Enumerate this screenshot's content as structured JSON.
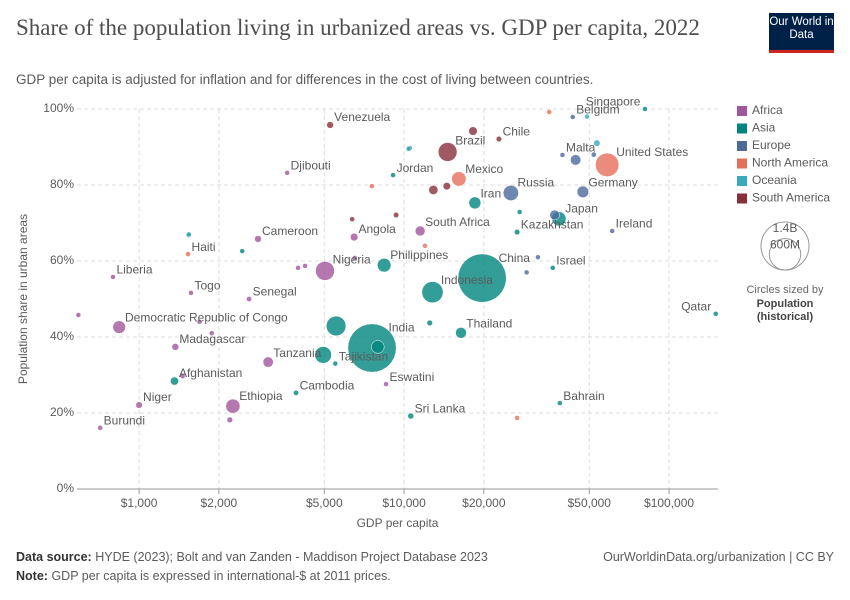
{
  "chart_data": {
    "type": "bubble",
    "title": "Share of the population living in urbanized areas vs. GDP per capita, 2022",
    "subtitle": "GDP per capita is adjusted for inflation and for differences in the cost of living between countries.",
    "logo": "Our World in Data",
    "x_label": "GDP per capita",
    "y_label": "Population share in urban areas",
    "log_x": true,
    "grid": true,
    "legend_position": "right",
    "xlim": [
      583,
      153000
    ],
    "xticks": [
      {
        "value": 1000,
        "label": "$1,000"
      },
      {
        "value": 2000,
        "label": "$2,000"
      },
      {
        "value": 5000,
        "label": "$5,000"
      },
      {
        "value": 10000,
        "label": "$10,000"
      },
      {
        "value": 20000,
        "label": "$20,000"
      },
      {
        "value": 50000,
        "label": "$50,000"
      },
      {
        "value": 100000,
        "label": "$100,000"
      }
    ],
    "ylim": [
      0,
      100
    ],
    "yticks": [
      {
        "value": 0,
        "label": "0%"
      },
      {
        "value": 20,
        "label": "20%"
      },
      {
        "value": 40,
        "label": "40%"
      },
      {
        "value": 60,
        "label": "60%"
      },
      {
        "value": 80,
        "label": "80%"
      },
      {
        "value": 100,
        "label": "100%"
      }
    ],
    "series": [
      {
        "name": "Africa",
        "color": "#a2559c",
        "labels": [
          "Djibouti",
          "Cameroon",
          "Nigeria",
          "Liberia",
          "Togo",
          "Senegal",
          "Democratic Republic of Congo",
          "Madagascar",
          "Tanzania",
          "Ethiopia",
          "Niger",
          "Burundi",
          "South Africa",
          "Angola",
          "Eswatini",
          null,
          null,
          null,
          null,
          null,
          null,
          null,
          null
        ],
        "x": [
          3620,
          2810,
          5030,
          797,
          1570,
          2600,
          841,
          1370,
          3070,
          2260,
          1000,
          713,
          11500,
          6480,
          8550,
          590,
          1690,
          1880,
          4230,
          3980,
          6520,
          2200,
          1460
        ],
        "values": [
          83.2,
          65.8,
          57.4,
          55.8,
          51.6,
          50.0,
          42.6,
          37.4,
          33.4,
          21.8,
          22.1,
          16.1,
          67.9,
          66.3,
          27.6,
          45.8,
          44,
          41,
          58.7,
          58.2,
          60.8,
          18.2,
          29.7
        ],
        "sizes": [
          1100000,
          28000000,
          218000000,
          5300000,
          8800000,
          17000000,
          99000000,
          29000000,
          65000000,
          123000000,
          26000000,
          13000000,
          60000000,
          36000000,
          1200000,
          2000000,
          5000000,
          4000000,
          6000000,
          5000000,
          4000000,
          20000000,
          8000000
        ]
      },
      {
        "name": "Asia",
        "color": "#00847e",
        "labels": [
          "Jordan",
          "Iran",
          "Japan",
          "Kazakhstan",
          "China",
          "Israel",
          "Philippines",
          "Indonesia",
          "Qatar",
          "Thailand",
          "India",
          "Tajikistan",
          "Afghanistan",
          "Cambodia",
          "Sri Lanka",
          "Bahrain",
          "Singapore",
          null,
          null,
          null,
          null,
          null,
          null,
          null,
          null
        ],
        "x": [
          9090,
          18500,
          38400,
          26700,
          19700,
          36400,
          8410,
          12800,
          150000,
          16400,
          7570,
          5500,
          1360,
          3910,
          10600,
          38700,
          81100,
          5540,
          2450,
          1540,
          12500,
          7960,
          27300,
          10500,
          4950
        ],
        "values": [
          82.6,
          75.3,
          71.1,
          67.6,
          55.5,
          58.2,
          58.9,
          51.8,
          46.1,
          41.1,
          37.1,
          33.0,
          28.4,
          25.3,
          19.2,
          22.6,
          100,
          42.9,
          62.6,
          66.8,
          43.7,
          37.4,
          72.9,
          89.7,
          35.3
        ],
        "sizes": [
          11000000,
          88000000,
          125000000,
          19000000,
          1420000000,
          9000000,
          115000000,
          275000000,
          2700000,
          72000000,
          1420000000,
          10000000,
          41000000,
          17000000,
          22000000,
          1500000,
          6000000,
          235000000,
          3000000,
          7000000,
          20000000,
          100000000,
          10000000,
          2000000,
          170000000
        ]
      },
      {
        "name": "Europe",
        "color": "#4c6a9c",
        "labels": [
          "Belgium",
          "Malta",
          "Russia",
          "Germany",
          "Ireland",
          null,
          null,
          null,
          null,
          null
        ],
        "x": [
          43300,
          39600,
          25300,
          47300,
          61000,
          44400,
          37000,
          32000,
          52000,
          29000
        ],
        "values": [
          97.9,
          87.9,
          77.9,
          78.2,
          67.9,
          86.6,
          72.1,
          61,
          88,
          57
        ],
        "sizes": [
          11600000,
          500000,
          144000000,
          83000000,
          5000000,
          67000000,
          59000000,
          9000000,
          17000000,
          10000000
        ]
      },
      {
        "name": "North America",
        "color": "#e56e5a",
        "labels": [
          "United States",
          "Mexico",
          "Haiti",
          null,
          null,
          null,
          null
        ],
        "x": [
          58400,
          16100,
          1530,
          7560,
          35300,
          26700,
          12000
        ],
        "values": [
          85.3,
          81.6,
          61.8,
          79.7,
          99.2,
          18.7,
          64
        ],
        "sizes": [
          335000000,
          127000000,
          11500000,
          2000000,
          400000,
          1000000,
          3000000
        ]
      },
      {
        "name": "Oceania",
        "color": "#38aaba",
        "labels": [
          null,
          null,
          null,
          null
        ],
        "x": [
          53400,
          10400,
          1540,
          49000
        ],
        "values": [
          91,
          89.5,
          67,
          98
        ],
        "sizes": [
          26000000,
          1000000,
          9000000,
          5000000
        ]
      },
      {
        "name": "South America",
        "color": "#883039",
        "labels": [
          "Venezuela",
          "Brazil",
          "Chile",
          null,
          null,
          null,
          null,
          null
        ],
        "x": [
          5260,
          14600,
          22800,
          18200,
          12900,
          14500,
          6370,
          9330
        ],
        "values": [
          95.8,
          88.7,
          92.1,
          94.2,
          78.7,
          79.7,
          71,
          72.1
        ],
        "sizes": [
          28000000,
          215000000,
          19000000,
          45000000,
          52000000,
          34000000,
          12000000,
          18000000
        ]
      }
    ],
    "size_legend": {
      "ticks": [
        {
          "value": 1400000000,
          "label": "1.4B"
        },
        {
          "value": 600000000,
          "label": "600M"
        }
      ],
      "title": "Circles sized by",
      "variable": "Population (historical)"
    },
    "source_label": "Data source:",
    "source": "HYDE (2023); Bolt and van Zanden - Maddison Project Database 2023",
    "url": "OurWorldinData.org/urbanization | CC BY",
    "note_label": "Note:",
    "note": "GDP per capita is expressed in international-$ at 2011 prices."
  }
}
